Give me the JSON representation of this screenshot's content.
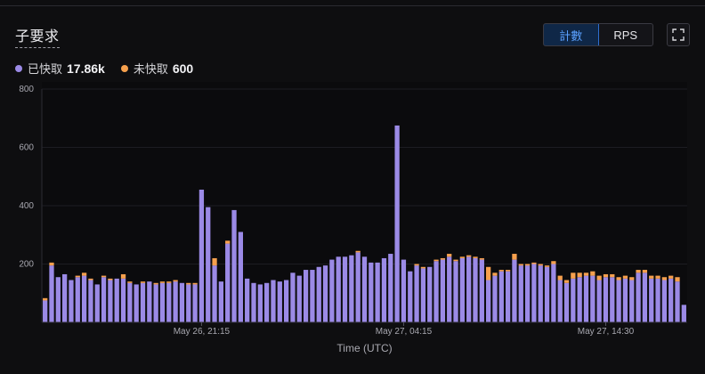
{
  "panel": {
    "title": "子要求"
  },
  "toggle": {
    "count_label": "計數",
    "rps_label": "RPS",
    "active": "count"
  },
  "expand_icon": "expand-icon",
  "legend": {
    "fetched": {
      "label": "已快取",
      "value": "17.86k",
      "color": "#9b8ae6"
    },
    "unfetched": {
      "label": "未快取",
      "value": "600",
      "color": "#f6a04d"
    }
  },
  "chart_data": {
    "type": "bar",
    "stacked": true,
    "xlabel": "Time (UTC)",
    "ylabel": "",
    "ylim": [
      0,
      800
    ],
    "yticks": [
      200,
      400,
      600,
      800
    ],
    "grid": true,
    "xtick_labels": [
      {
        "label": "May 26, 21:15",
        "index": 24
      },
      {
        "label": "May 27, 04:15",
        "index": 55
      },
      {
        "label": "May 27, 14:30",
        "index": 86
      }
    ],
    "series": [
      {
        "name": "已快取",
        "color": "#9b8ae6",
        "values": [
          75,
          195,
          155,
          165,
          145,
          155,
          160,
          145,
          130,
          155,
          145,
          150,
          150,
          135,
          130,
          135,
          140,
          130,
          135,
          135,
          140,
          135,
          130,
          130,
          455,
          395,
          195,
          140,
          270,
          385,
          310,
          150,
          135,
          130,
          135,
          145,
          140,
          145,
          170,
          160,
          180,
          180,
          190,
          195,
          215,
          225,
          225,
          230,
          240,
          225,
          205,
          205,
          220,
          235,
          675,
          215,
          175,
          195,
          185,
          190,
          210,
          215,
          225,
          210,
          220,
          225,
          220,
          215,
          145,
          160,
          175,
          175,
          215,
          195,
          195,
          200,
          195,
          190,
          200,
          145,
          135,
          150,
          155,
          160,
          160,
          145,
          155,
          155,
          145,
          150,
          145,
          170,
          170,
          150,
          150,
          145,
          150,
          140,
          60
        ]
      },
      {
        "name": "未快取",
        "color": "#f6a04d",
        "values": [
          8,
          10,
          0,
          0,
          0,
          5,
          10,
          5,
          0,
          5,
          5,
          0,
          15,
          5,
          0,
          5,
          0,
          5,
          5,
          5,
          5,
          0,
          5,
          5,
          0,
          0,
          25,
          0,
          10,
          0,
          0,
          0,
          0,
          0,
          0,
          0,
          0,
          0,
          0,
          0,
          0,
          0,
          0,
          0,
          0,
          0,
          0,
          0,
          5,
          0,
          0,
          0,
          0,
          0,
          0,
          0,
          0,
          5,
          5,
          0,
          5,
          5,
          10,
          5,
          5,
          5,
          5,
          5,
          45,
          10,
          5,
          5,
          20,
          5,
          5,
          5,
          5,
          5,
          10,
          15,
          10,
          20,
          15,
          10,
          15,
          15,
          10,
          10,
          10,
          10,
          10,
          10,
          10,
          10,
          10,
          10,
          10,
          15,
          0
        ]
      }
    ]
  }
}
